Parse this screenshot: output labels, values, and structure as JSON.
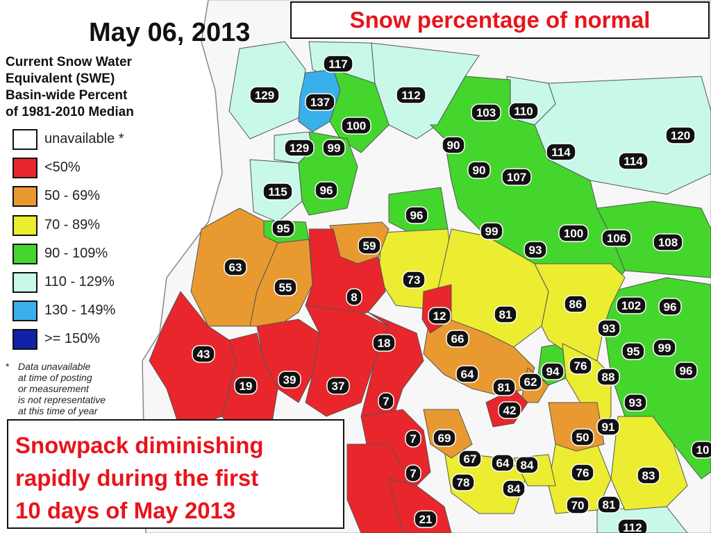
{
  "map": {
    "date_title": "May 06, 2013",
    "legend_title_lines": [
      "Current Snow Water",
      "Equivalent (SWE)",
      "Basin-wide Percent",
      "of 1981-2010 Median"
    ],
    "legend": [
      {
        "label": "unavailable *",
        "color": "#ffffff"
      },
      {
        "label": "<50%",
        "color": "#e8262b"
      },
      {
        "label": "50 - 69%",
        "color": "#e89a30"
      },
      {
        "label": "70 - 89%",
        "color": "#ecec30"
      },
      {
        "label": "90 - 109%",
        "color": "#44d62c"
      },
      {
        "label": "110 - 129%",
        "color": "#c8f8e8"
      },
      {
        "label": "130 - 149%",
        "color": "#39b0ea"
      },
      {
        "label": ">= 150%",
        "color": "#1022a8"
      }
    ],
    "footnote_star": "*",
    "footnote_lines": [
      "Data unavailable",
      "at time of posting",
      "or measurement",
      "is not representative",
      "at this time of year"
    ],
    "headline": "Snow percentage of normal",
    "callout_lines": [
      "Snowpack diminishing",
      "rapidly during the first",
      "10 days of May 2013"
    ],
    "basin_values": [
      "117",
      "129",
      "137",
      "112",
      "100",
      "103",
      "110",
      "120",
      "129",
      "99",
      "90",
      "114",
      "114",
      "90",
      "107",
      "115",
      "96",
      "96",
      "95",
      "99",
      "59",
      "100",
      "106",
      "108",
      "63",
      "93",
      "55",
      "73",
      "8",
      "86",
      "81",
      "102",
      "96",
      "12",
      "93",
      "43",
      "66",
      "18",
      "95",
      "99",
      "64",
      "19",
      "39",
      "37",
      "76",
      "94",
      "81",
      "62",
      "88",
      "96",
      "7",
      "42",
      "93",
      "91",
      "69",
      "7",
      "50",
      "67",
      "64",
      "84",
      "7",
      "78",
      "84",
      "76",
      "83",
      "70",
      "81",
      "21",
      "112",
      "10"
    ]
  }
}
